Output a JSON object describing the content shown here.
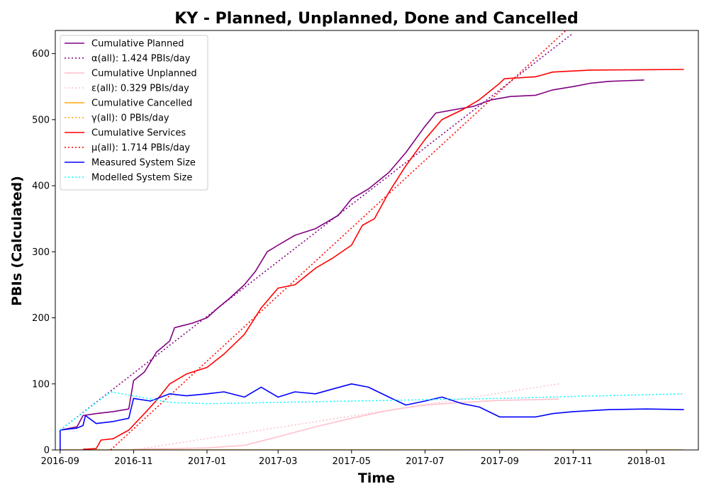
{
  "chart_data": {
    "type": "line",
    "title": "KY - Planned, Unplanned, Done  and Cancelled",
    "xlabel": "Time",
    "ylabel": "PBIs (Calculated)",
    "xlim": [
      "2016-08-28",
      "2018-02-13"
    ],
    "ylim": [
      0,
      635
    ],
    "x_ticks": [
      "2016-09",
      "2016-11",
      "2017-01",
      "2017-03",
      "2017-05",
      "2017-07",
      "2017-09",
      "2017-11",
      "2018-01"
    ],
    "y_ticks": [
      0,
      100,
      200,
      300,
      400,
      500,
      600
    ],
    "grid": false,
    "legend_position": "top-left",
    "series": [
      {
        "name": "Cumulative Planned",
        "color": "#800080",
        "style": "solid",
        "points": [
          [
            "2016-09-01",
            30
          ],
          [
            "2016-09-15",
            35
          ],
          [
            "2016-09-20",
            52
          ],
          [
            "2016-10-01",
            55
          ],
          [
            "2016-10-15",
            58
          ],
          [
            "2016-10-28",
            62
          ],
          [
            "2016-11-01",
            105
          ],
          [
            "2016-11-10",
            118
          ],
          [
            "2016-11-20",
            148
          ],
          [
            "2016-12-01",
            165
          ],
          [
            "2016-12-05",
            185
          ],
          [
            "2016-12-20",
            192
          ],
          [
            "2017-01-01",
            200
          ],
          [
            "2017-01-10",
            215
          ],
          [
            "2017-01-20",
            230
          ],
          [
            "2017-02-01",
            250
          ],
          [
            "2017-02-10",
            270
          ],
          [
            "2017-02-20",
            300
          ],
          [
            "2017-03-01",
            310
          ],
          [
            "2017-03-15",
            325
          ],
          [
            "2017-04-01",
            335
          ],
          [
            "2017-04-20",
            355
          ],
          [
            "2017-05-01",
            380
          ],
          [
            "2017-05-15",
            395
          ],
          [
            "2017-06-01",
            420
          ],
          [
            "2017-06-15",
            450
          ],
          [
            "2017-07-01",
            490
          ],
          [
            "2017-07-10",
            510
          ],
          [
            "2017-07-25",
            515
          ],
          [
            "2017-08-10",
            520
          ],
          [
            "2017-08-25",
            530
          ],
          [
            "2017-09-10",
            535
          ],
          [
            "2017-10-01",
            537
          ],
          [
            "2017-10-15",
            545
          ],
          [
            "2017-11-01",
            550
          ],
          [
            "2017-11-15",
            555
          ],
          [
            "2017-12-01",
            558
          ],
          [
            "2017-12-30",
            560
          ]
        ]
      },
      {
        "name": "α(all): 1.424 PBIs/day",
        "color": "#800080",
        "style": "dotted",
        "points": [
          [
            "2016-09-01",
            30
          ],
          [
            "2017-11-01",
            631
          ]
        ]
      },
      {
        "name": "Cumulative Unplanned",
        "color": "#ffc0cb",
        "style": "solid",
        "points": [
          [
            "2016-11-01",
            1
          ],
          [
            "2016-12-01",
            2
          ],
          [
            "2017-01-01",
            3
          ],
          [
            "2017-02-01",
            7
          ],
          [
            "2017-03-01",
            20
          ],
          [
            "2017-04-01",
            35
          ],
          [
            "2017-05-01",
            48
          ],
          [
            "2017-06-01",
            60
          ],
          [
            "2017-07-01",
            68
          ],
          [
            "2017-08-01",
            72
          ],
          [
            "2017-09-01",
            75
          ],
          [
            "2017-10-20",
            77
          ]
        ]
      },
      {
        "name": "ε(all): 0.329 PBIs/day",
        "color": "#ffc0cb",
        "style": "dotted",
        "points": [
          [
            "2016-11-01",
            0
          ],
          [
            "2017-10-20",
            100
          ]
        ]
      },
      {
        "name": "Cumulative Cancelled",
        "color": "#ffa500",
        "style": "solid",
        "points": [
          [
            "2016-09-01",
            0
          ],
          [
            "2018-02-01",
            0
          ]
        ]
      },
      {
        "name": "γ(all): 0 PBIs/day",
        "color": "#ffa500",
        "style": "dotted",
        "points": [
          [
            "2016-09-01",
            0
          ],
          [
            "2018-02-01",
            0
          ]
        ]
      },
      {
        "name": "Cumulative Services",
        "color": "#ff0000",
        "style": "solid",
        "points": [
          [
            "2016-09-20",
            1
          ],
          [
            "2016-10-01",
            2
          ],
          [
            "2016-10-05",
            15
          ],
          [
            "2016-10-15",
            17
          ],
          [
            "2016-10-28",
            30
          ],
          [
            "2016-11-10",
            55
          ],
          [
            "2016-11-20",
            75
          ],
          [
            "2016-12-01",
            100
          ],
          [
            "2016-12-15",
            115
          ],
          [
            "2017-01-01",
            125
          ],
          [
            "2017-01-15",
            145
          ],
          [
            "2017-02-01",
            175
          ],
          [
            "2017-02-15",
            215
          ],
          [
            "2017-03-01",
            245
          ],
          [
            "2017-03-15",
            250
          ],
          [
            "2017-04-01",
            275
          ],
          [
            "2017-04-15",
            290
          ],
          [
            "2017-05-01",
            310
          ],
          [
            "2017-05-10",
            340
          ],
          [
            "2017-05-20",
            350
          ],
          [
            "2017-06-01",
            390
          ],
          [
            "2017-06-15",
            430
          ],
          [
            "2017-07-01",
            470
          ],
          [
            "2017-07-15",
            500
          ],
          [
            "2017-08-01",
            515
          ],
          [
            "2017-08-15",
            530
          ],
          [
            "2017-09-01",
            555
          ],
          [
            "2017-09-05",
            562
          ],
          [
            "2017-10-01",
            565
          ],
          [
            "2017-10-15",
            572
          ],
          [
            "2017-11-15",
            575
          ],
          [
            "2018-02-01",
            576
          ]
        ]
      },
      {
        "name": "μ(all): 1.714 PBIs/day",
        "color": "#ff0000",
        "style": "dotted",
        "points": [
          [
            "2016-10-13",
            0
          ],
          [
            "2017-10-26",
            635
          ]
        ]
      },
      {
        "name": "Measured System Size",
        "color": "#0000ff",
        "style": "solid",
        "points": [
          [
            "2016-09-01",
            0
          ],
          [
            "2016-09-01",
            30
          ],
          [
            "2016-09-15",
            33
          ],
          [
            "2016-09-20",
            37
          ],
          [
            "2016-09-22",
            52
          ],
          [
            "2016-10-01",
            40
          ],
          [
            "2016-10-15",
            43
          ],
          [
            "2016-10-28",
            48
          ],
          [
            "2016-11-01",
            78
          ],
          [
            "2016-11-15",
            74
          ],
          [
            "2016-12-01",
            85
          ],
          [
            "2016-12-15",
            82
          ],
          [
            "2017-01-01",
            85
          ],
          [
            "2017-01-15",
            88
          ],
          [
            "2017-02-01",
            80
          ],
          [
            "2017-02-15",
            95
          ],
          [
            "2017-03-01",
            80
          ],
          [
            "2017-03-15",
            88
          ],
          [
            "2017-04-01",
            85
          ],
          [
            "2017-04-15",
            92
          ],
          [
            "2017-05-01",
            100
          ],
          [
            "2017-05-15",
            95
          ],
          [
            "2017-06-01",
            80
          ],
          [
            "2017-06-15",
            68
          ],
          [
            "2017-07-01",
            74
          ],
          [
            "2017-07-15",
            80
          ],
          [
            "2017-08-01",
            70
          ],
          [
            "2017-08-15",
            65
          ],
          [
            "2017-09-01",
            50
          ],
          [
            "2017-10-01",
            50
          ],
          [
            "2017-10-15",
            55
          ],
          [
            "2017-11-01",
            58
          ],
          [
            "2017-12-01",
            61
          ],
          [
            "2018-01-01",
            62
          ],
          [
            "2018-02-01",
            61
          ]
        ]
      },
      {
        "name": "Modelled System Size",
        "color": "#00ffff",
        "style": "dotted",
        "points": [
          [
            "2016-09-01",
            30
          ],
          [
            "2016-10-13",
            88
          ],
          [
            "2016-12-01",
            72
          ],
          [
            "2017-01-01",
            70
          ],
          [
            "2017-03-01",
            72
          ],
          [
            "2017-05-01",
            74
          ],
          [
            "2017-07-01",
            76
          ],
          [
            "2017-09-01",
            78
          ],
          [
            "2017-11-01",
            81
          ],
          [
            "2018-02-01",
            85
          ]
        ]
      }
    ]
  }
}
